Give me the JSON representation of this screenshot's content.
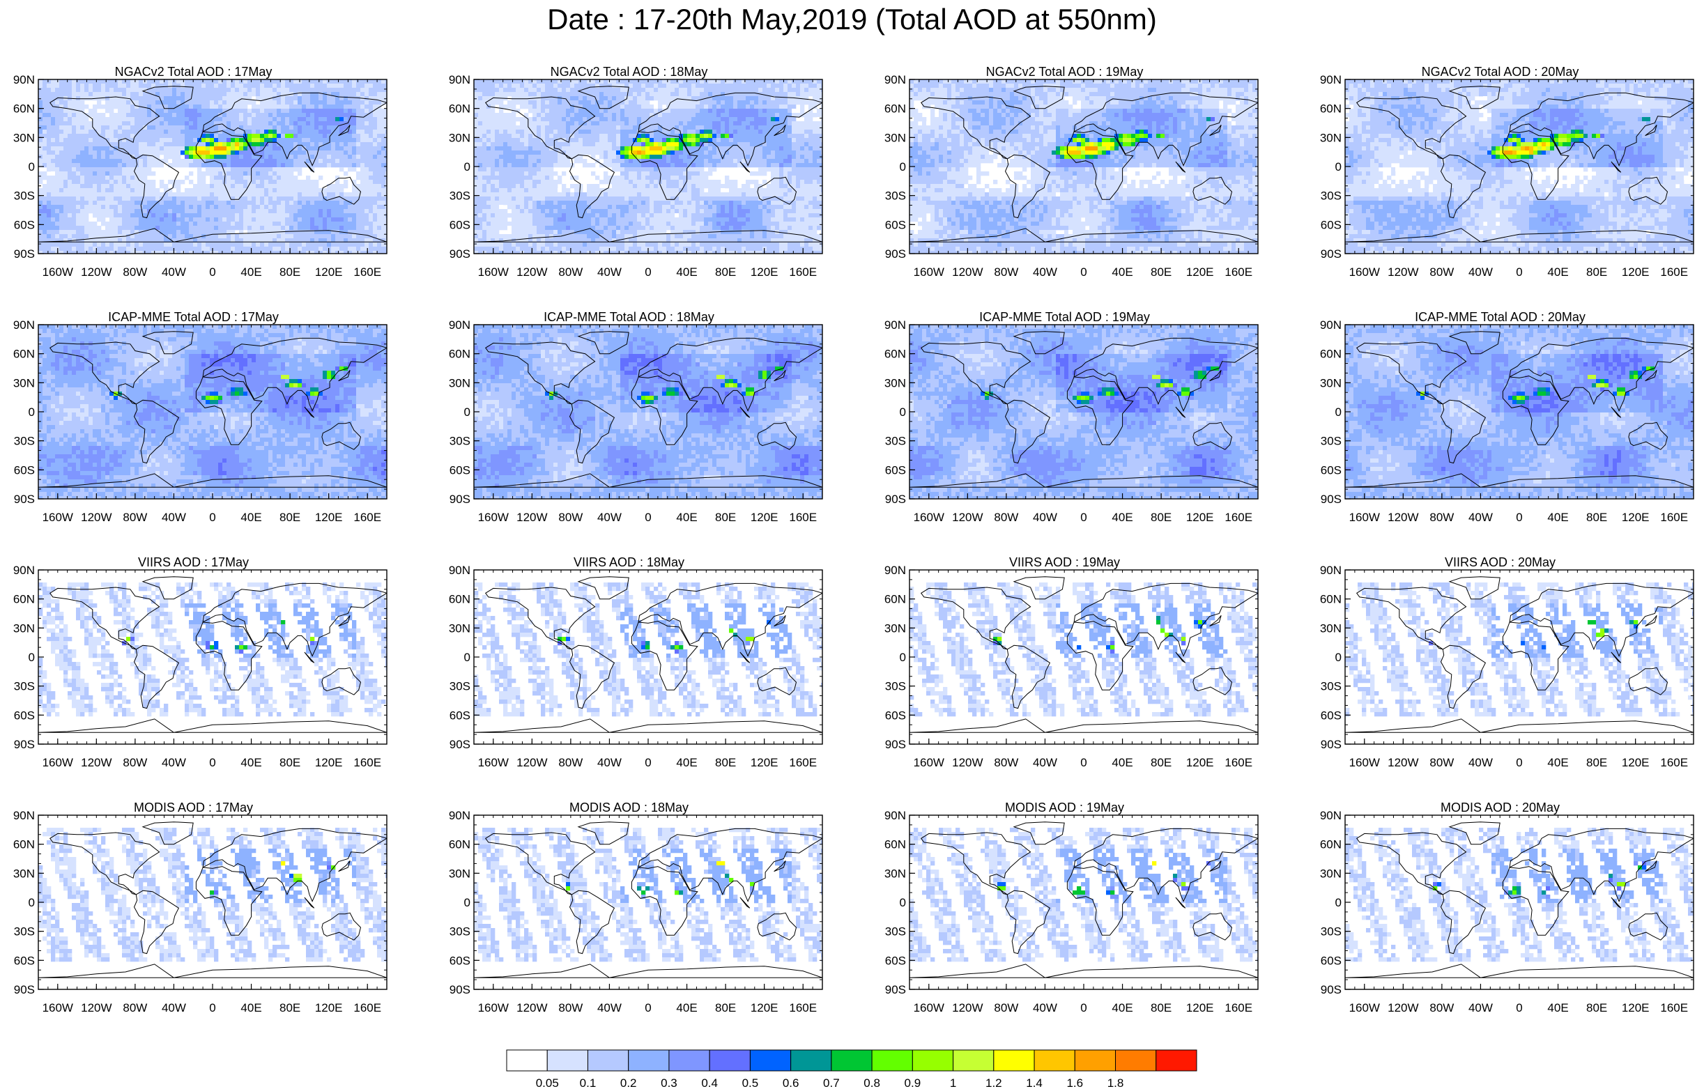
{
  "title": "Date : 17-20th May,2019 (Total AOD at 550nm)",
  "panels": [
    {
      "title": "NGACv2 Total AOD : 17May",
      "product": "NGACv2",
      "day": 17
    },
    {
      "title": "NGACv2 Total AOD : 18May",
      "product": "NGACv2",
      "day": 18
    },
    {
      "title": "NGACv2 Total AOD : 19May",
      "product": "NGACv2",
      "day": 19
    },
    {
      "title": "NGACv2 Total AOD : 20May",
      "product": "NGACv2",
      "day": 20
    },
    {
      "title": "ICAP-MME Total AOD : 17May",
      "product": "ICAP-MME",
      "day": 17
    },
    {
      "title": "ICAP-MME Total AOD : 18May",
      "product": "ICAP-MME",
      "day": 18
    },
    {
      "title": "ICAP-MME Total AOD : 19May",
      "product": "ICAP-MME",
      "day": 19
    },
    {
      "title": "ICAP-MME Total AOD : 20May",
      "product": "ICAP-MME",
      "day": 20
    },
    {
      "title": "VIIRS AOD : 17May",
      "product": "VIIRS",
      "day": 17
    },
    {
      "title": "VIIRS AOD : 18May",
      "product": "VIIRS",
      "day": 18
    },
    {
      "title": "VIIRS AOD : 19May",
      "product": "VIIRS",
      "day": 19
    },
    {
      "title": "VIIRS AOD : 20May",
      "product": "VIIRS",
      "day": 20
    },
    {
      "title": "MODIS AOD : 17May",
      "product": "MODIS",
      "day": 17
    },
    {
      "title": "MODIS AOD : 18May",
      "product": "MODIS",
      "day": 18
    },
    {
      "title": "MODIS AOD : 19May",
      "product": "MODIS",
      "day": 19
    },
    {
      "title": "MODIS AOD : 20May",
      "product": "MODIS",
      "day": 20
    }
  ],
  "lat_ticks": [
    "90N",
    "60N",
    "30N",
    "0",
    "30S",
    "60S",
    "90S"
  ],
  "lon_ticks": [
    "160W",
    "120W",
    "80W",
    "40W",
    "0",
    "40E",
    "80E",
    "120E",
    "160E"
  ],
  "colorbar": {
    "labels": [
      "0.05",
      "0.1",
      "0.2",
      "0.3",
      "0.4",
      "0.5",
      "0.6",
      "0.7",
      "0.8",
      "0.9",
      "1",
      "1.2",
      "1.4",
      "1.6",
      "1.8"
    ],
    "colors": [
      "#ffffff",
      "#d6e2ff",
      "#b5c9ff",
      "#8eb2ff",
      "#7f96ff",
      "#6370ff",
      "#0063ff",
      "#009696",
      "#00c633",
      "#63ff00",
      "#96ff00",
      "#c6ff33",
      "#ffff00",
      "#ffc600",
      "#ffa000",
      "#ff7c00",
      "#ff1900"
    ]
  }
}
